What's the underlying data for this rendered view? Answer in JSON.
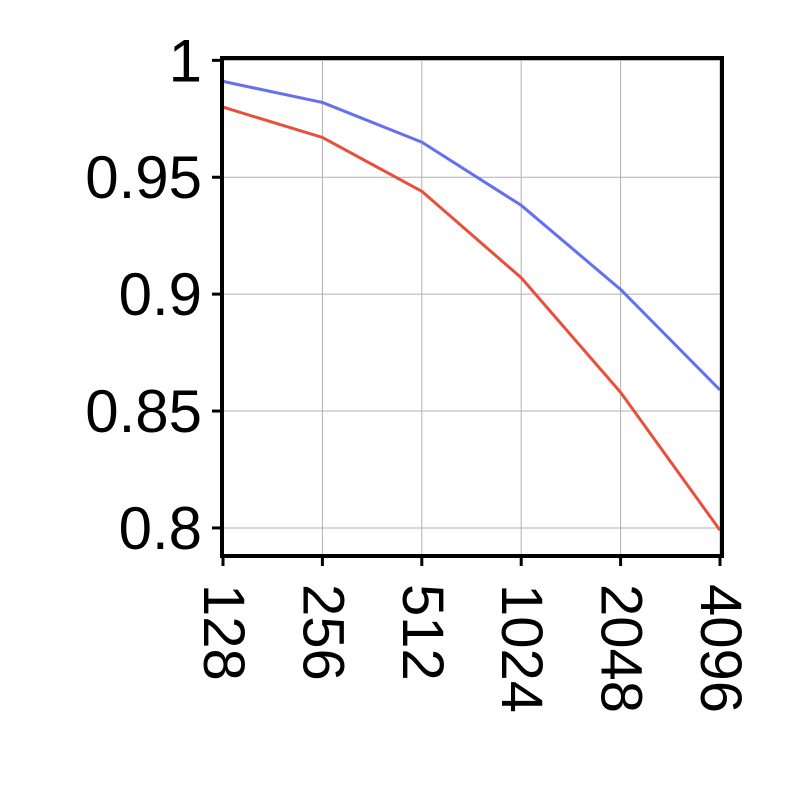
{
  "chart_data": {
    "type": "line",
    "x_scale": "log2",
    "categories": [
      "128",
      "256",
      "512",
      "1024",
      "2048",
      "4096"
    ],
    "series": [
      {
        "color": "#6470f0",
        "values": [
          0.991,
          0.982,
          0.965,
          0.938,
          0.902,
          0.859
        ]
      },
      {
        "color": "#e8503c",
        "values": [
          0.98,
          0.967,
          0.944,
          0.907,
          0.858,
          0.799
        ]
      }
    ],
    "ylim": [
      0.788,
      1.001
    ],
    "yticks": [
      0.8,
      0.85,
      0.9,
      0.95,
      1
    ],
    "ytick_labels": [
      "0.8",
      "0.85",
      "0.9",
      "0.95",
      "1"
    ],
    "grid": true,
    "legend": "none"
  }
}
